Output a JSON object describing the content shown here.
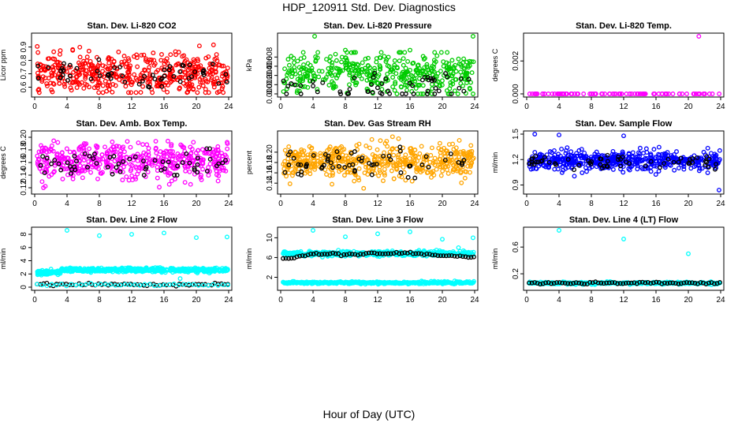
{
  "title": "HDP_120911  Std. Dev. Diagnostics",
  "footer": "Hour of Day (UTC)",
  "chart_data": [
    {
      "type": "scatter",
      "title": "Stan. Dev. Li-820 CO2",
      "ylabel": "Licor ppm",
      "xlim": [
        0,
        24
      ],
      "ylim": [
        0.55,
        0.98
      ],
      "xticks": [
        "0",
        "4",
        "8",
        "12",
        "16",
        "20",
        "24"
      ],
      "yticks": [
        0.6,
        0.7,
        0.8,
        0.9
      ],
      "ytick_labels": [
        "0.6",
        "0.7",
        "0.8",
        "0.9"
      ],
      "series": [
        {
          "color": "#ff0000",
          "n": 480,
          "mean": 0.7,
          "sd": 0.075,
          "lo": 0.56,
          "hi": 0.97
        },
        {
          "color": "#000000",
          "n": 58,
          "mean": 0.69,
          "sd": 0.055,
          "lo": 0.6,
          "hi": 0.9
        }
      ]
    },
    {
      "type": "scatter",
      "title": "Stan. Dev. Li-820 Pressure",
      "ylabel": "kPa",
      "xlim": [
        0,
        24
      ],
      "ylim": [
        0,
        0.0125
      ],
      "xticks": [
        "0",
        "4",
        "8",
        "12",
        "16",
        "20",
        "24"
      ],
      "yticks": [
        0,
        0.002,
        0.004,
        0.006,
        0.008
      ],
      "ytick_labels": [
        "0.000",
        "0.002",
        "0.004",
        "0.006",
        "0.008"
      ],
      "series": [
        {
          "color": "#00cc00",
          "n": 430,
          "mean": 0.0045,
          "sd": 0.0022,
          "lo": 0,
          "hi": 0.009
        },
        {
          "color": "#000000",
          "n": 55,
          "mean": 0.0012,
          "sd": 0.0018,
          "lo": 0,
          "hi": 0.011
        }
      ],
      "outliers": [
        {
          "x": 4.2,
          "y": 0.0125,
          "c": "#00cc00"
        },
        {
          "x": 8.0,
          "y": 0.0095,
          "c": "#00cc00"
        },
        {
          "x": 16.0,
          "y": 0.0095,
          "c": "#00cc00"
        },
        {
          "x": 23.8,
          "y": 0.0125,
          "c": "#00cc00"
        }
      ]
    },
    {
      "type": "scatter",
      "title": "Stan. Dev. Li-820 Temp.",
      "ylabel": "degrees C",
      "xlim": [
        0,
        24
      ],
      "ylim": [
        0,
        0.0035
      ],
      "xticks": [
        "0",
        "4",
        "8",
        "12",
        "16",
        "20",
        "24"
      ],
      "yticks": [
        0,
        0.002
      ],
      "ytick_labels": [
        "0.000",
        "0.002"
      ],
      "series": [
        {
          "color": "#ff00ff",
          "n": 95,
          "mean": 0,
          "sd": 0,
          "lo": 0,
          "hi": 0
        },
        {
          "color": "#000000",
          "n": 0,
          "mean": 0,
          "sd": 0,
          "lo": 0,
          "hi": 0
        }
      ],
      "outliers": [
        {
          "x": 21.3,
          "y": 0.0035,
          "c": "#ff00ff"
        }
      ]
    },
    {
      "type": "scatter",
      "title": "Stan. Dev. Amb. Box Temp.",
      "ylabel": "degrees C",
      "xlim": [
        0,
        24
      ],
      "ylim": [
        0.115,
        0.205
      ],
      "xticks": [
        "0",
        "4",
        "8",
        "12",
        "16",
        "20",
        "24"
      ],
      "yticks": [
        0.12,
        0.14,
        0.16,
        0.18,
        0.2
      ],
      "ytick_labels": [
        "0.12",
        "0.14",
        "0.16",
        "0.18",
        "0.20"
      ],
      "series": [
        {
          "color": "#ff00ff",
          "n": 470,
          "mean": 0.162,
          "sd": 0.014,
          "lo": 0.12,
          "hi": 0.2
        },
        {
          "color": "#000000",
          "n": 60,
          "mean": 0.16,
          "sd": 0.01,
          "lo": 0.14,
          "hi": 0.182
        }
      ]
    },
    {
      "type": "scatter",
      "title": "Stan. Dev. Gas Stream RH",
      "ylabel": "percent",
      "xlim": [
        0,
        24
      ],
      "ylim": [
        0.125,
        0.235
      ],
      "xticks": [
        "0",
        "4",
        "8",
        "12",
        "16",
        "20",
        "24"
      ],
      "yticks": [
        0.14,
        0.16,
        0.18,
        0.2
      ],
      "ytick_labels": [
        "0.14",
        "0.16",
        "0.18",
        "0.20"
      ],
      "series": [
        {
          "color": "#ffa500",
          "n": 520,
          "mean": 0.18,
          "sd": 0.017,
          "lo": 0.13,
          "hi": 0.23
        },
        {
          "color": "#000000",
          "n": 60,
          "mean": 0.18,
          "sd": 0.012,
          "lo": 0.15,
          "hi": 0.21
        }
      ]
    },
    {
      "type": "scatter",
      "title": "Stan. Dev. Sample Flow",
      "ylabel": "ml/min",
      "xlim": [
        0,
        24
      ],
      "ylim": [
        0.83,
        1.5
      ],
      "xticks": [
        "0",
        "4",
        "8",
        "12",
        "16",
        "20",
        "24"
      ],
      "yticks": [
        0.9,
        1.2,
        1.5
      ],
      "ytick_labels": [
        "0.9",
        "1.2",
        "1.5"
      ],
      "series": [
        {
          "color": "#0000ff",
          "n": 520,
          "mean": 1.19,
          "sd": 0.055,
          "lo": 0.92,
          "hi": 1.4
        },
        {
          "color": "#000000",
          "n": 60,
          "mean": 1.17,
          "sd": 0.04,
          "lo": 1.08,
          "hi": 1.26
        }
      ],
      "outliers": [
        {
          "x": 1.0,
          "y": 1.5,
          "c": "#0000ff"
        },
        {
          "x": 4.0,
          "y": 1.49,
          "c": "#0000ff"
        },
        {
          "x": 12.0,
          "y": 1.48,
          "c": "#0000ff"
        },
        {
          "x": 23.8,
          "y": 0.84,
          "c": "#0000ff"
        }
      ]
    },
    {
      "type": "scatter",
      "title": "Stan. Dev. Line 2 Flow",
      "ylabel": "ml/min",
      "xlim": [
        0,
        24
      ],
      "ylim": [
        0,
        8.6
      ],
      "xticks": [
        "0",
        "4",
        "8",
        "12",
        "16",
        "20",
        "24"
      ],
      "yticks": [
        0,
        2,
        4,
        6,
        8
      ],
      "ytick_labels": [
        "0",
        "2",
        "4",
        "6",
        "8"
      ],
      "bands": [
        {
          "color": "#00ffff",
          "x0": 0,
          "x1": 3.2,
          "mean": 2.2,
          "sd": 0.15,
          "n": 110
        },
        {
          "color": "#00ffff",
          "x0": 3.2,
          "x1": 24,
          "mean": 2.6,
          "sd": 0.15,
          "n": 480
        }
      ],
      "lines": [
        {
          "color": "#000000",
          "y": 0.4,
          "n": 60
        },
        {
          "color": "#00ffff",
          "y": 0.35,
          "n": 40
        }
      ],
      "outliers": [
        {
          "x": 4.0,
          "y": 8.6,
          "c": "#00ffff"
        },
        {
          "x": 8.0,
          "y": 7.8,
          "c": "#00ffff"
        },
        {
          "x": 12.0,
          "y": 8.0,
          "c": "#00ffff"
        },
        {
          "x": 16.0,
          "y": 8.2,
          "c": "#00ffff"
        },
        {
          "x": 20.0,
          "y": 7.5,
          "c": "#00ffff"
        },
        {
          "x": 23.8,
          "y": 7.6,
          "c": "#00ffff"
        },
        {
          "x": 18.0,
          "y": 1.3,
          "c": "#00ffff"
        }
      ]
    },
    {
      "type": "scatter",
      "title": "Stan. Dev. Line 3 Flow",
      "ylabel": "ml/min",
      "xlim": [
        0,
        24
      ],
      "ylim": [
        0,
        11.5
      ],
      "xticks": [
        "0",
        "4",
        "8",
        "12",
        "16",
        "20",
        "24"
      ],
      "yticks": [
        2,
        6,
        10
      ],
      "ytick_labels": [
        "2",
        "6",
        "10"
      ],
      "bands": [
        {
          "color": "#00ffff",
          "x0": 0,
          "x1": 24,
          "mean": 6.8,
          "sd": 0.25,
          "n": 420
        }
      ],
      "curve": {
        "color": "#000000",
        "points": [
          [
            0.3,
            5.6
          ],
          [
            2,
            6.2
          ],
          [
            4,
            6.8
          ],
          [
            8,
            6.6
          ],
          [
            12,
            6.8
          ],
          [
            16,
            6.9
          ],
          [
            20,
            6.4
          ],
          [
            24,
            6.2
          ]
        ],
        "n": 70
      },
      "lines": [
        {
          "color": "#00ffff",
          "y": 0.9,
          "n": 300
        }
      ],
      "outliers": [
        {
          "x": 4.0,
          "y": 11.5,
          "c": "#00ffff"
        },
        {
          "x": 8.0,
          "y": 10.2,
          "c": "#00ffff"
        },
        {
          "x": 12.0,
          "y": 10.8,
          "c": "#00ffff"
        },
        {
          "x": 16.0,
          "y": 11.2,
          "c": "#00ffff"
        },
        {
          "x": 20.0,
          "y": 9.7,
          "c": "#00ffff"
        },
        {
          "x": 23.8,
          "y": 10.0,
          "c": "#00ffff"
        },
        {
          "x": 22.0,
          "y": 8.0,
          "c": "#00ffff"
        }
      ]
    },
    {
      "type": "scatter",
      "title": "Stan. Dev. Line 4 (LT) Flow",
      "ylabel": "ml/min",
      "xlim": [
        0,
        24
      ],
      "ylim": [
        0,
        0.85
      ],
      "xticks": [
        "0",
        "4",
        "8",
        "12",
        "16",
        "20",
        "24"
      ],
      "yticks": [
        0.2,
        0.6
      ],
      "ytick_labels": [
        "0.2",
        "0.6"
      ],
      "lines": [
        {
          "color": "#00ffff",
          "y": 0.06,
          "n": 300
        },
        {
          "color": "#000000",
          "y": 0.06,
          "n": 70
        }
      ],
      "outliers": [
        {
          "x": 4.0,
          "y": 0.85,
          "c": "#00ffff"
        },
        {
          "x": 12.0,
          "y": 0.72,
          "c": "#00ffff"
        },
        {
          "x": 20.0,
          "y": 0.5,
          "c": "#00ffff"
        }
      ]
    }
  ]
}
